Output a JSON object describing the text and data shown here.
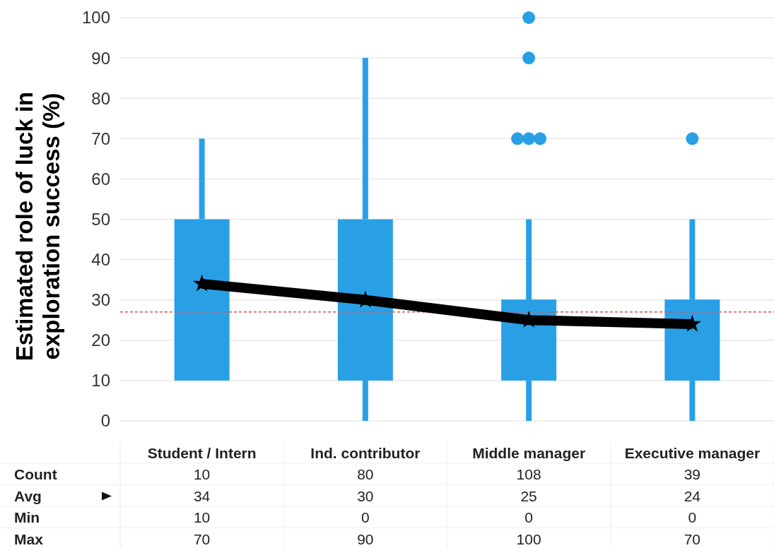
{
  "chart_data": {
    "type": "box",
    "ylabel": "Estimated role of luck in exploration success (%)",
    "categories": [
      "Student / Intern",
      "Ind. contributor",
      "Middle manager",
      "Executive manager"
    ],
    "ylim": [
      0,
      100
    ],
    "yticks": [
      0,
      10,
      20,
      30,
      40,
      50,
      60,
      70,
      80,
      90,
      100
    ],
    "grid": "y",
    "series": [
      {
        "color": "#29a0e6",
        "boxes": [
          {
            "low": 10,
            "q1": 10,
            "median": 30,
            "q3": 50,
            "high": 70
          },
          {
            "low": 0,
            "q1": 10,
            "median": 30,
            "q3": 50,
            "high": 90
          },
          {
            "low": 0,
            "q1": 10,
            "median": 30,
            "q3": 30,
            "high": 50,
            "outliers": [
              70,
              70,
              70,
              90,
              100
            ]
          },
          {
            "low": 0,
            "q1": 10,
            "median": 30,
            "q3": 30,
            "high": 50,
            "outliers": [
              70
            ]
          }
        ]
      },
      {
        "type": "line",
        "color": "#000000",
        "values": [
          34,
          30,
          25,
          24
        ],
        "marker": "star"
      }
    ],
    "ref_lines": [
      {
        "axis": "y",
        "value": 27,
        "color": "#e05050",
        "line_style": "dashed"
      }
    ],
    "annotations": [
      "Count",
      "10",
      "80",
      "108",
      "39",
      "Avg",
      "34",
      "30",
      "25",
      "24",
      "Min",
      "10",
      "0",
      "0",
      "0",
      "Max",
      "70",
      "90",
      "100",
      "70"
    ]
  }
}
